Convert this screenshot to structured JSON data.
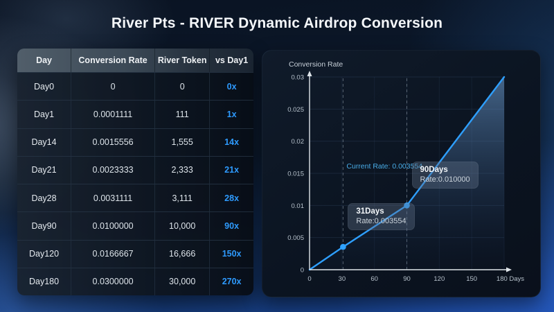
{
  "title": "River Pts - RIVER Dynamic Airdrop Conversion",
  "accent_color": "#2e9bff",
  "table": {
    "columns": [
      "Day",
      "Conversion Rate",
      "River Token",
      "vs Day1"
    ],
    "rows": [
      [
        "Day0",
        "0",
        "0",
        "0x"
      ],
      [
        "Day1",
        "0.0001111",
        "111",
        "1x"
      ],
      [
        "Day14",
        "0.0015556",
        "1,555",
        "14x"
      ],
      [
        "Day21",
        "0.0023333",
        "2,333",
        "21x"
      ],
      [
        "Day28",
        "0.0031111",
        "3,111",
        "28x"
      ],
      [
        "Day90",
        "0.0100000",
        "10,000",
        "90x"
      ],
      [
        "Day120",
        "0.0166667",
        "16,666",
        "150x"
      ],
      [
        "Day180",
        "0.0300000",
        "30,000",
        "270x"
      ]
    ]
  },
  "chart_data": {
    "type": "area",
    "title": "Conversion Rate",
    "x": [
      0,
      31,
      90,
      180
    ],
    "y": [
      0,
      0.003554,
      0.01,
      0.03
    ],
    "xlim": [
      0,
      180
    ],
    "ylim": [
      0,
      0.03
    ],
    "x_ticks": [
      0,
      30,
      60,
      90,
      120,
      150,
      180
    ],
    "x_tick_labels": [
      "0",
      "30",
      "60",
      "90",
      "120",
      "150",
      "180 Days"
    ],
    "y_ticks": [
      0,
      0.005,
      0.01,
      0.015,
      0.02,
      0.025,
      0.03
    ],
    "y_tick_labels": [
      "0",
      "0.005",
      "0.01",
      "0.015",
      "0.02",
      "0.025",
      "0.03"
    ],
    "grid": true,
    "legend": "none",
    "markers": [
      {
        "day": 31,
        "rate": 0.003554,
        "label_title": "31Days",
        "label_rate": "Rate:0.003554"
      },
      {
        "day": 90,
        "rate": 0.01,
        "label_title": "90Days",
        "label_rate": "Rate:0.010000"
      }
    ],
    "annotation": "Current Rate: 0.003554",
    "colors": {
      "line": "#2e9fff",
      "dot": "#2fa2ff",
      "annotation_text": "#49ade8",
      "axis": "#dfe5ea"
    }
  }
}
